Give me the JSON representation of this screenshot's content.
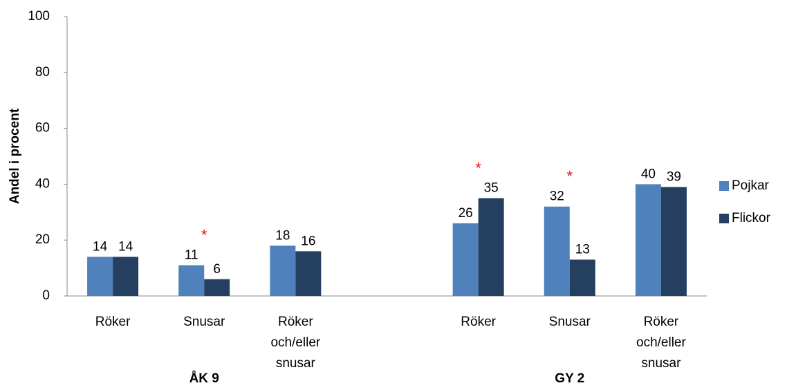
{
  "chart_data": {
    "type": "bar",
    "y_label": "Andel i procent",
    "categories": [
      "Röker",
      "Snusar",
      "Röker och/eller snusar",
      null,
      "Röker",
      "Snusar",
      "Röker och/eller snusar"
    ],
    "groups": [
      "ÅK 9",
      "GY 2"
    ],
    "series": [
      {
        "name": "Pojkar",
        "color": "#4f81bd",
        "values": [
          14,
          11,
          18,
          null,
          26,
          32,
          40
        ]
      },
      {
        "name": "Flickor",
        "color": "#243f60",
        "values": [
          14,
          6,
          16,
          null,
          35,
          13,
          39
        ]
      }
    ],
    "significant": [
      false,
      true,
      false,
      null,
      true,
      true,
      false
    ],
    "significance_marker": "*",
    "marker_color": "#ff0000",
    "ylim": [
      0,
      100
    ],
    "yticks": [
      0,
      20,
      40,
      60,
      80,
      100
    ],
    "grid": false,
    "legend": "right"
  }
}
